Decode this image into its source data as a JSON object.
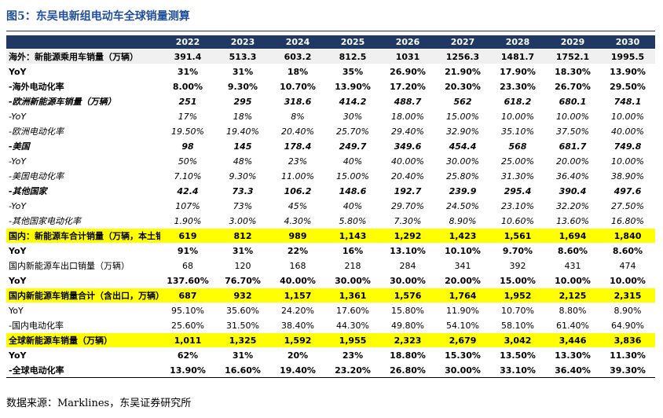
{
  "title": "图5：东吴电新组电动车全球销量测算",
  "table": {
    "columns": [
      "2022",
      "2023",
      "2024",
      "2025",
      "2026",
      "2027",
      "2028",
      "2029",
      "2030"
    ],
    "rows": [
      {
        "label": "海外：新能源乘用车销量（万辆）",
        "values": [
          "391.4",
          "513.3",
          "603.2",
          "812.5",
          "1031",
          "1256.3",
          "1481.7",
          "1752.1",
          "1995.5"
        ]
      },
      {
        "label": "YoY",
        "values": [
          "31%",
          "31%",
          "18%",
          "35%",
          "26.90%",
          "21.90%",
          "17.90%",
          "18.30%",
          "13.90%"
        ]
      },
      {
        "label": "-海外电动化率",
        "values": [
          "8.00%",
          "9.30%",
          "10.70%",
          "13.90%",
          "17.20%",
          "20.30%",
          "23.30%",
          "26.70%",
          "29.50%"
        ]
      },
      {
        "label": "-欧洲新能源车销量（万辆）",
        "values": [
          "251",
          "295",
          "318.6",
          "414.2",
          "488.7",
          "562",
          "618.2",
          "680.1",
          "748.1"
        ]
      },
      {
        "label": "-YoY",
        "values": [
          "17%",
          "18%",
          "8%",
          "30%",
          "18.00%",
          "15.00%",
          "10.00%",
          "10.00%",
          "10.00%"
        ]
      },
      {
        "label": "-欧洲电动化率",
        "values": [
          "19.50%",
          "19.40%",
          "20.40%",
          "25.70%",
          "29.40%",
          "32.90%",
          "35.10%",
          "37.50%",
          "40.00%"
        ]
      },
      {
        "label": "-美国",
        "values": [
          "98",
          "145",
          "178.4",
          "249.7",
          "349.6",
          "454.4",
          "568",
          "681.7",
          "749.8"
        ]
      },
      {
        "label": "-YoY",
        "values": [
          "50%",
          "48%",
          "23%",
          "40%",
          "40.00%",
          "30.00%",
          "25.00%",
          "20.00%",
          "10.00%"
        ]
      },
      {
        "label": "-美国电动化率",
        "values": [
          "7.10%",
          "9.30%",
          "11.00%",
          "15.00%",
          "20.40%",
          "25.80%",
          "31.30%",
          "36.40%",
          "38.90%"
        ]
      },
      {
        "label": "-其他国家",
        "values": [
          "42.4",
          "73.3",
          "106.2",
          "148.6",
          "192.7",
          "239.9",
          "295.4",
          "390.4",
          "497.6"
        ]
      },
      {
        "label": "-YoY",
        "values": [
          "107%",
          "73%",
          "45%",
          "40%",
          "29.70%",
          "24.50%",
          "23.10%",
          "32.20%",
          "27.50%"
        ]
      },
      {
        "label": "-其他国家电动化率",
        "values": [
          "1.90%",
          "3.00%",
          "4.30%",
          "5.80%",
          "7.30%",
          "8.90%",
          "10.60%",
          "13.60%",
          "16.80%"
        ]
      },
      {
        "label": "国内：新能源车合计销量（万辆，本土销量）",
        "values": [
          "619",
          "812",
          "989",
          "1,143",
          "1,292",
          "1,423",
          "1,561",
          "1,694",
          "1,840"
        ]
      },
      {
        "label": "YoY",
        "values": [
          "91%",
          "31%",
          "22%",
          "16%",
          "13.10%",
          "10.10%",
          "9.70%",
          "8.60%",
          "8.60%"
        ]
      },
      {
        "label": "国内新能源车出口销量（万辆）",
        "values": [
          "68",
          "120",
          "168",
          "218",
          "284",
          "341",
          "392",
          "431",
          "474"
        ]
      },
      {
        "label": "YoY",
        "values": [
          "137.60%",
          "76.70%",
          "40.00%",
          "30.00%",
          "30.00%",
          "20.00%",
          "15.00%",
          "10.00%",
          "10.00%"
        ]
      },
      {
        "label": "国内新能源车销量合计（含出口，万辆）",
        "values": [
          "687",
          "932",
          "1,157",
          "1,361",
          "1,576",
          "1,764",
          "1,952",
          "2,125",
          "2,315"
        ]
      },
      {
        "label": "YoY",
        "values": [
          "95.10%",
          "35.60%",
          "24.20%",
          "17.60%",
          "15.80%",
          "11.90%",
          "10.70%",
          "8.80%",
          "8.90%"
        ]
      },
      {
        "label": "-国内电动化率",
        "values": [
          "25.60%",
          "31.50%",
          "38.40%",
          "44.30%",
          "49.80%",
          "54.10%",
          "58.10%",
          "61.40%",
          "64.90%"
        ]
      },
      {
        "label": "全球新能源车销量（万辆）",
        "values": [
          "1,011",
          "1,325",
          "1,592",
          "1,955",
          "2,323",
          "2,679",
          "3,042",
          "3,446",
          "3,836"
        ]
      },
      {
        "label": "YoY",
        "values": [
          "62%",
          "31%",
          "20%",
          "23%",
          "18.80%",
          "15.30%",
          "13.50%",
          "13.30%",
          "11.30%"
        ]
      },
      {
        "label": "-全球电动化率",
        "values": [
          "13.90%",
          "16.60%",
          "19.40%",
          "23.20%",
          "26.80%",
          "30.00%",
          "33.10%",
          "36.40%",
          "39.30%"
        ]
      }
    ]
  },
  "source": "数据来源：Marklines，东吴证券研究所"
}
